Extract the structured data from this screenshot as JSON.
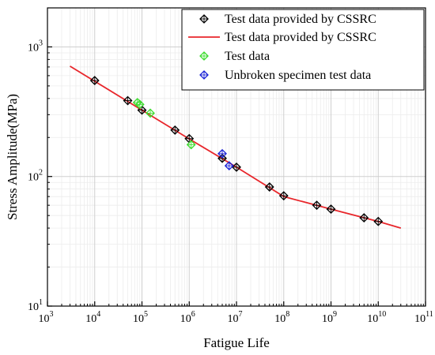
{
  "chart_data": {
    "type": "scatter",
    "xlabel": "Fatigue Life",
    "ylabel": "Stress Amplitude(MPa)",
    "xscale": "log",
    "yscale": "log",
    "xlim": [
      1000,
      100000000000
    ],
    "ylim": [
      10,
      2000
    ],
    "grid": true,
    "legend_position": "top-right",
    "x_ticks": [
      {
        "value": 1000,
        "base": "10",
        "exp": "3"
      },
      {
        "value": 10000,
        "base": "10",
        "exp": "4"
      },
      {
        "value": 100000,
        "base": "10",
        "exp": "5"
      },
      {
        "value": 1000000,
        "base": "10",
        "exp": "6"
      },
      {
        "value": 10000000,
        "base": "10",
        "exp": "7"
      },
      {
        "value": 100000000,
        "base": "10",
        "exp": "8"
      },
      {
        "value": 1000000000,
        "base": "10",
        "exp": "9"
      },
      {
        "value": 10000000000,
        "base": "10",
        "exp": "10"
      },
      {
        "value": 100000000000,
        "base": "10",
        "exp": "11"
      }
    ],
    "y_ticks": [
      {
        "value": 10,
        "base": "10",
        "exp": "1"
      },
      {
        "value": 100,
        "base": "10",
        "exp": "2"
      },
      {
        "value": 1000,
        "base": "10",
        "exp": "3"
      }
    ],
    "series": [
      {
        "name": "Test data provided by CSSRC",
        "kind": "markers",
        "color": "#000000",
        "points": [
          [
            10000,
            550
          ],
          [
            50000,
            385
          ],
          [
            100000,
            325
          ],
          [
            500000,
            228
          ],
          [
            1000000,
            196
          ],
          [
            5000000,
            138
          ],
          [
            10000000,
            118
          ],
          [
            50000000,
            83
          ],
          [
            100000000,
            71
          ],
          [
            500000000,
            60
          ],
          [
            1000000000,
            56
          ],
          [
            5000000000,
            48
          ],
          [
            10000000000,
            45
          ]
        ]
      },
      {
        "name": "Test data provided by CSSRC",
        "kind": "line",
        "color": "#e8262b",
        "points": [
          [
            3000,
            710
          ],
          [
            100000,
            325
          ],
          [
            1000000,
            195
          ],
          [
            10000000,
            118
          ],
          [
            100000000,
            70
          ],
          [
            1000000000,
            56
          ],
          [
            10000000000,
            45
          ],
          [
            30000000000,
            40
          ]
        ]
      },
      {
        "name": "Test data",
        "kind": "markers",
        "color": "#3ddc2e",
        "points": [
          [
            80000,
            372
          ],
          [
            90000,
            360
          ],
          [
            150000,
            308
          ],
          [
            1100000,
            176
          ]
        ]
      },
      {
        "name": "Unbroken specimen test data",
        "kind": "markers",
        "color": "#1a22d6",
        "points": [
          [
            5000000,
            150
          ],
          [
            7000000,
            121
          ]
        ]
      }
    ]
  }
}
